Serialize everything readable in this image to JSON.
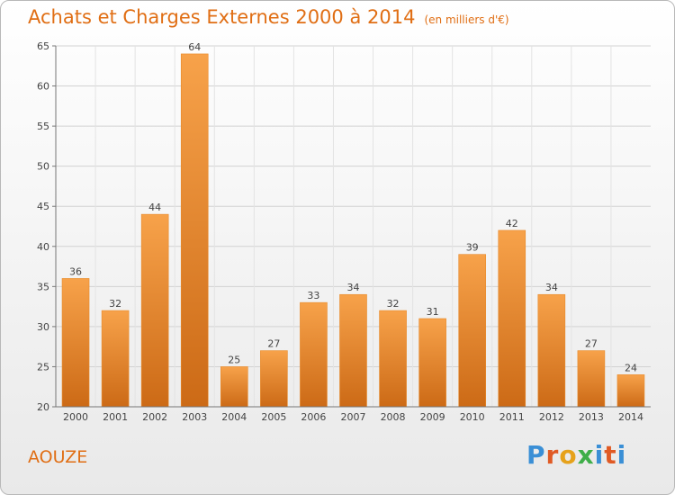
{
  "header": {
    "title": "Achats et Charges Externes 2000 à 2014",
    "unit": "(en milliers d'€)"
  },
  "footer": {
    "commune": "AOUZE",
    "logo_letters": [
      "P",
      "r",
      "o",
      "x",
      "i",
      "t",
      "i"
    ]
  },
  "colors": {
    "bar": "#f0922e",
    "bar_dark": "#cc6a16",
    "title": "#e06e14",
    "axis": "#555555"
  },
  "chart_data": {
    "type": "bar",
    "title": "Achats et Charges Externes 2000 à 2014",
    "subtitle": "(en milliers d'€)",
    "xlabel": "",
    "ylabel": "",
    "categories": [
      "2000",
      "2001",
      "2002",
      "2003",
      "2004",
      "2005",
      "2006",
      "2007",
      "2008",
      "2009",
      "2010",
      "2011",
      "2012",
      "2013",
      "2014"
    ],
    "values": [
      36,
      32,
      44,
      64,
      25,
      27,
      33,
      34,
      32,
      31,
      39,
      42,
      34,
      27,
      24
    ],
    "ylim": [
      20,
      65
    ],
    "yticks": [
      20,
      25,
      30,
      35,
      40,
      45,
      50,
      55,
      60,
      65
    ],
    "grid": true,
    "legend": "none"
  }
}
